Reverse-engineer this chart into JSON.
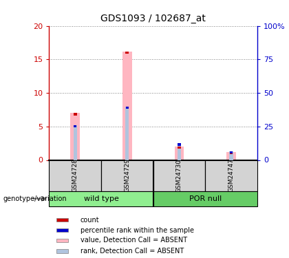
{
  "title": "GDS1093 / 102687_at",
  "samples": [
    "GSM24728",
    "GSM24729",
    "GSM24730",
    "GSM24747"
  ],
  "value_bars": [
    7.0,
    16.2,
    2.0,
    1.2
  ],
  "rank_bars": [
    5.2,
    8.0,
    2.5,
    1.3
  ],
  "value_color": "#ffb6c1",
  "rank_color": "#b0c4de",
  "count_color": "#cc0000",
  "percentile_color": "#0000cc",
  "ylim_left": [
    0,
    20
  ],
  "ylim_right": [
    0,
    100
  ],
  "yticks_left": [
    0,
    5,
    10,
    15,
    20
  ],
  "yticks_right": [
    0,
    25,
    50,
    75,
    100
  ],
  "legend_items": [
    {
      "label": "count",
      "color": "#cc0000"
    },
    {
      "label": "percentile rank within the sample",
      "color": "#0000cc"
    },
    {
      "label": "value, Detection Call = ABSENT",
      "color": "#ffb6c1"
    },
    {
      "label": "rank, Detection Call = ABSENT",
      "color": "#b0c4de"
    }
  ],
  "genotype_label": "genotype/variation",
  "wild_type_label": "wild type",
  "por_null_label": "POR null",
  "light_green": "#90EE90",
  "medium_green": "#66CC66",
  "gray_bg": "#d3d3d3",
  "bar_width": 0.18,
  "rank_bar_width": 0.07
}
